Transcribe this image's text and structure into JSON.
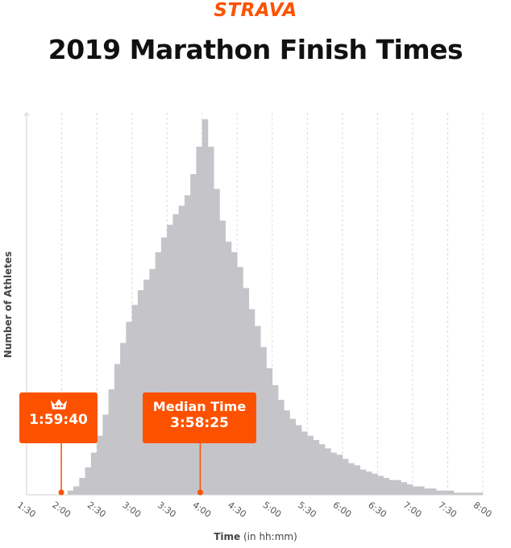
{
  "brand": {
    "name": "STRAVA",
    "color": "#fc5200"
  },
  "colors": {
    "bars": "#c5c4c9",
    "grid": "#dcdcdc",
    "axis": "#cfcfcf",
    "accent": "#fc5200"
  },
  "callouts": {
    "record": {
      "icon": "crown-icon",
      "value": "1:59:40",
      "time_min": 119.67
    },
    "median": {
      "label": "Median Time",
      "value": "3:58:25",
      "time_min": 238.42
    }
  },
  "chart_data": {
    "type": "bar",
    "title": "2019 Marathon Finish Times",
    "xlabel": "Time (in hh:mm)",
    "ylabel": "Number of Athletes",
    "x_unit": "minutes",
    "xlim": [
      90,
      480
    ],
    "y_axis_ticks": "none",
    "grid": "vertical dashed",
    "x_ticks": [
      {
        "label": "1:30",
        "value": 90
      },
      {
        "label": "2:00",
        "value": 120
      },
      {
        "label": "2:30",
        "value": 150
      },
      {
        "label": "3:00",
        "value": 180
      },
      {
        "label": "3:30",
        "value": 210
      },
      {
        "label": "4:00",
        "value": 240
      },
      {
        "label": "4:30",
        "value": 270
      },
      {
        "label": "5:00",
        "value": 300
      },
      {
        "label": "5:30",
        "value": 330
      },
      {
        "label": "6:00",
        "value": 360
      },
      {
        "label": "6:30",
        "value": 390
      },
      {
        "label": "7:00",
        "value": 420
      },
      {
        "label": "7:30",
        "value": 450
      },
      {
        "label": "8:00",
        "value": 480
      }
    ],
    "bin_width_min": 5,
    "bins_start_min": [
      125,
      130,
      135,
      140,
      145,
      150,
      155,
      160,
      165,
      170,
      175,
      180,
      185,
      190,
      195,
      200,
      205,
      210,
      215,
      220,
      225,
      230,
      235,
      240,
      245,
      250,
      255,
      260,
      265,
      270,
      275,
      280,
      285,
      290,
      295,
      300,
      305,
      310,
      315,
      320,
      325,
      330,
      335,
      340,
      345,
      350,
      355,
      360,
      365,
      370,
      375,
      380,
      385,
      390,
      395,
      400,
      405,
      410,
      415,
      420,
      425,
      430,
      435,
      440,
      445,
      450,
      455,
      460,
      465,
      470,
      475
    ],
    "counts": [
      2,
      4,
      8,
      13,
      20,
      28,
      38,
      50,
      62,
      72,
      82,
      90,
      97,
      102,
      107,
      115,
      122,
      128,
      133,
      137,
      142,
      152,
      165,
      178,
      165,
      145,
      130,
      120,
      115,
      108,
      98,
      88,
      80,
      70,
      60,
      52,
      45,
      40,
      36,
      33,
      30,
      28,
      26,
      24,
      22,
      20,
      19,
      17,
      15,
      14,
      12,
      11,
      10,
      9,
      8,
      7,
      7,
      6,
      5,
      4,
      4,
      3,
      3,
      2,
      2,
      2,
      1,
      1,
      1,
      1,
      1
    ],
    "count_unit": "relative (no y-axis scale shown)",
    "markers": [
      {
        "name": "record",
        "x_min": 119.67
      },
      {
        "name": "median",
        "x_min": 238.42
      }
    ]
  }
}
